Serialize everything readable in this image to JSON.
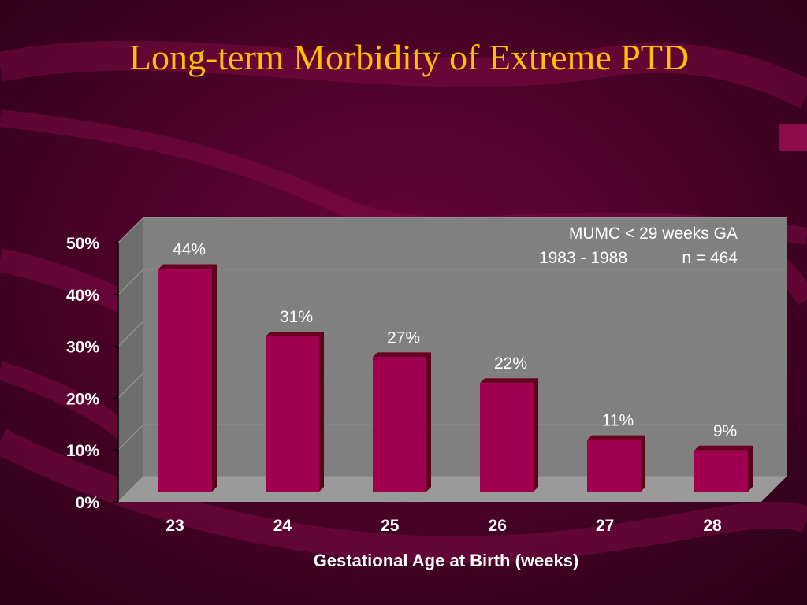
{
  "colors": {
    "background": "#5e0232",
    "title": "#ffc000",
    "bar": "#a0004f",
    "bar_side": "#5a0018",
    "plot_area": "#808080",
    "text": "#ffffff",
    "annotation_text": "#ffffff"
  },
  "chart_data": {
    "type": "bar",
    "title": "Long-term Morbidity of Extreme PTD",
    "xlabel": "Gestational Age at Birth (weeks)",
    "ylabel": "",
    "categories": [
      "23",
      "24",
      "25",
      "26",
      "27",
      "28"
    ],
    "values": [
      44,
      31,
      27,
      22,
      11,
      9
    ],
    "data_labels": [
      "44%",
      "31%",
      "27%",
      "22%",
      "11%",
      "9%"
    ],
    "ylim": [
      0,
      50
    ],
    "yticks": [
      0,
      10,
      20,
      30,
      40,
      50
    ],
    "ytick_labels": [
      "0%",
      "10%",
      "20%",
      "30%",
      "40%",
      "50%"
    ],
    "grid": true,
    "style": "3d-bar",
    "annotation": {
      "line1": "MUMC < 29 weeks GA",
      "line2a": "1983 - 1988",
      "line2b": "n = 464"
    }
  }
}
